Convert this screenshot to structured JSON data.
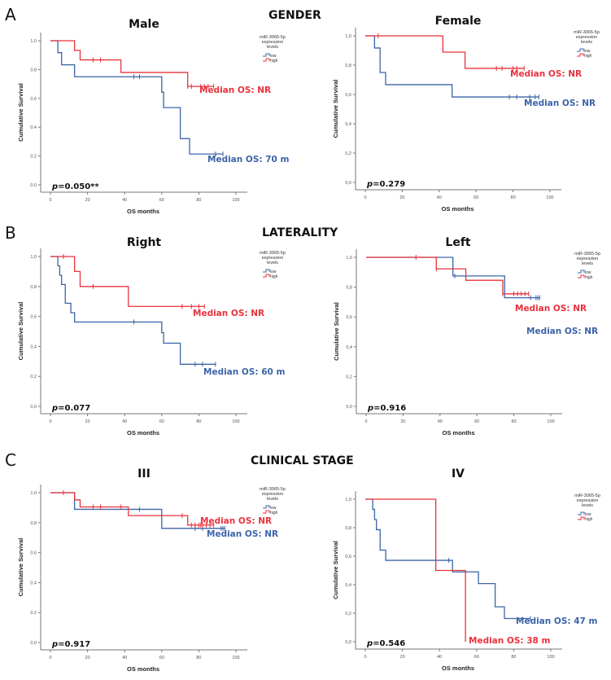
{
  "figure": {
    "sections": [
      {
        "letter": "A",
        "heading": "GENDER"
      },
      {
        "letter": "B",
        "heading": "LATERALITY"
      },
      {
        "letter": "C",
        "heading": "CLINICAL STAGE"
      }
    ]
  },
  "colors": {
    "low": "#3b64a8",
    "high": "#e8323c",
    "axis": "#777777"
  },
  "chart_data": [
    {
      "type": "line",
      "subtype": "kaplan-meier step",
      "title": "Male",
      "xlabel": "OS months",
      "ylabel": "Cumulative Survival",
      "xlim": [
        0,
        100
      ],
      "ylim": [
        0,
        1
      ],
      "xticks": [
        "0",
        "20",
        "40",
        "60",
        "80",
        "100"
      ],
      "yticks": [
        "0.0",
        "0.2",
        "0.4",
        "0.6",
        "0.8",
        "1.0"
      ],
      "legend": {
        "title": [
          "miR-3065-5p",
          "expression",
          "levels"
        ],
        "entries": [
          "low",
          "high"
        ],
        "position": "top-right"
      },
      "p_label": "p",
      "p_value": "=0.050**",
      "series": [
        {
          "name": "low",
          "steps": [
            [
              0,
              1
            ],
            [
              4,
              0.917
            ],
            [
              6,
              0.833
            ],
            [
              13,
              0.75
            ],
            [
              60,
              0.643
            ],
            [
              61,
              0.536
            ],
            [
              70,
              0.321
            ],
            [
              75,
              0.214
            ]
          ],
          "end": 93,
          "censored": [
            45,
            48,
            89,
            93
          ],
          "median_label": "Median OS: 70 m"
        },
        {
          "name": "high",
          "steps": [
            [
              0,
              1
            ],
            [
              13,
              0.933
            ],
            [
              16,
              0.867
            ],
            [
              38,
              0.78
            ],
            [
              74,
              0.683
            ]
          ],
          "end": 88,
          "censored": [
            23,
            27,
            74,
            76,
            81,
            83,
            85,
            88
          ],
          "median_label": "Median OS: NR"
        }
      ]
    },
    {
      "type": "line",
      "subtype": "kaplan-meier step",
      "title": "Female",
      "xlabel": "OS months",
      "ylabel": "Cumulative Survival",
      "xlim": [
        0,
        100
      ],
      "ylim": [
        0,
        1
      ],
      "xticks": [
        "0",
        "20",
        "40",
        "60",
        "80",
        "100"
      ],
      "yticks": [
        "0,0",
        "0,2",
        "0,4",
        "0,6",
        "0,8",
        "1,0"
      ],
      "legend": {
        "title": [
          "miR-3065-5p",
          "expression",
          "levels"
        ],
        "entries": [
          "low",
          "high"
        ],
        "position": "top-right"
      },
      "p_label": "p",
      "p_value": "=0.279",
      "series": [
        {
          "name": "low",
          "steps": [
            [
              0,
              1
            ],
            [
              5,
              0.917
            ],
            [
              8,
              0.75
            ],
            [
              11,
              0.667
            ],
            [
              47,
              0.583
            ]
          ],
          "end": 94,
          "censored": [
            78,
            82,
            89,
            92,
            94
          ],
          "median_label": "Median OS: NR"
        },
        {
          "name": "high",
          "steps": [
            [
              0,
              1
            ],
            [
              42,
              0.889
            ],
            [
              54,
              0.778
            ]
          ],
          "end": 86,
          "censored": [
            7,
            71,
            74,
            80,
            82,
            86
          ],
          "median_label": "Median OS: NR"
        }
      ]
    },
    {
      "type": "line",
      "subtype": "kaplan-meier step",
      "title": "Right",
      "xlabel": "OS months",
      "ylabel": "Cumulative Survival",
      "xlim": [
        0,
        100
      ],
      "ylim": [
        0,
        1
      ],
      "xticks": [
        "0",
        "20",
        "40",
        "60",
        "80",
        "100"
      ],
      "yticks": [
        "0,0",
        "0,2",
        "0,4",
        "0,6",
        "0,8",
        "1,0"
      ],
      "legend": {
        "title": [
          "miR-3065-5p",
          "expression",
          "levels"
        ],
        "entries": [
          "low",
          "high"
        ],
        "position": "top-right"
      },
      "p_label": "p",
      "p_value": "=0.077",
      "series": [
        {
          "name": "low",
          "steps": [
            [
              0,
              1
            ],
            [
              4,
              0.938
            ],
            [
              5,
              0.875
            ],
            [
              6,
              0.813
            ],
            [
              8,
              0.688
            ],
            [
              11,
              0.625
            ],
            [
              13,
              0.563
            ],
            [
              60,
              0.492
            ],
            [
              61,
              0.422
            ],
            [
              70,
              0.281
            ]
          ],
          "end": 89,
          "censored": [
            45,
            78,
            82,
            89
          ],
          "median_label": "Median OS: 60 m"
        },
        {
          "name": "high",
          "steps": [
            [
              0,
              1
            ],
            [
              13,
              0.9
            ],
            [
              16,
              0.8
            ],
            [
              42,
              0.667
            ]
          ],
          "end": 83,
          "censored": [
            7,
            23,
            71,
            76,
            80,
            83
          ],
          "median_label": "Median OS: NR"
        }
      ]
    },
    {
      "type": "line",
      "subtype": "kaplan-meier step",
      "title": "Left",
      "xlabel": "OS months",
      "ylabel": "Cumulative Survival",
      "xlim": [
        0,
        100
      ],
      "ylim": [
        0,
        1
      ],
      "xticks": [
        "0",
        "20",
        "40",
        "60",
        "80",
        "100"
      ],
      "yticks": [
        "0,0",
        "0,2",
        "0,4",
        "0,6",
        "0,8",
        "1,0"
      ],
      "legend": {
        "title": [
          "miR-3065-5p",
          "expression",
          "levels"
        ],
        "entries": [
          "low",
          "high"
        ],
        "position": "top-right"
      },
      "p_label": "p",
      "p_value": "=0.916",
      "series": [
        {
          "name": "low",
          "steps": [
            [
              0,
              1
            ],
            [
              47,
              0.875
            ],
            [
              75,
              0.729
            ]
          ],
          "end": 94,
          "censored": [
            48,
            89,
            92,
            93,
            94
          ],
          "median_label": "Median OS: NR"
        },
        {
          "name": "high",
          "steps": [
            [
              0,
              1
            ],
            [
              38,
              0.923
            ],
            [
              54,
              0.846
            ],
            [
              74,
              0.755
            ]
          ],
          "end": 88,
          "censored": [
            27,
            38,
            74,
            80,
            82,
            84,
            86,
            88
          ],
          "median_label": "Median OS: NR"
        }
      ]
    },
    {
      "type": "line",
      "subtype": "kaplan-meier step",
      "title": "III",
      "xlabel": "OS months",
      "ylabel": "Cumulative Survival",
      "xlim": [
        0,
        100
      ],
      "ylim": [
        0,
        1
      ],
      "xticks": [
        "0",
        "20",
        "40",
        "60",
        "80",
        "100"
      ],
      "yticks": [
        "0.0",
        "0.2",
        "0.4",
        "0.6",
        "0.8",
        "1.0"
      ],
      "legend": {
        "title": [
          "miR-3065-5p",
          "expression",
          "levels"
        ],
        "entries": [
          "low",
          "high"
        ],
        "position": "top-right"
      },
      "p_label": "p",
      "p_value": "=0.917",
      "series": [
        {
          "name": "low",
          "steps": [
            [
              0,
              1
            ],
            [
              13,
              0.889
            ],
            [
              60,
              0.762
            ]
          ],
          "end": 94,
          "censored": [
            48,
            78,
            82,
            92,
            93,
            94
          ],
          "median_label": "Median OS: NR"
        },
        {
          "name": "high",
          "steps": [
            [
              0,
              1
            ],
            [
              13,
              0.952
            ],
            [
              16,
              0.905
            ],
            [
              42,
              0.847
            ],
            [
              74,
              0.784
            ]
          ],
          "end": 88,
          "censored": [
            7,
            23,
            27,
            38,
            71,
            76,
            78,
            80,
            81,
            82,
            84,
            86,
            88
          ],
          "median_label": "Median OS: NR"
        }
      ]
    },
    {
      "type": "line",
      "subtype": "kaplan-meier step",
      "title": "IV",
      "xlabel": "OS months",
      "ylabel": "Cumulative Survival",
      "xlim": [
        0,
        100
      ],
      "ylim": [
        0,
        1
      ],
      "xticks": [
        "0",
        "20",
        "40",
        "60",
        "80",
        "100"
      ],
      "yticks": [
        "0,0",
        "0,2",
        "0,4",
        "0,6",
        "0,8",
        "1,0"
      ],
      "legend": {
        "title": [
          "miR-3065-5p",
          "expression",
          "levels"
        ],
        "entries": [
          "low",
          "high"
        ],
        "position": "top-right"
      },
      "p_label": "p",
      "p_value": "=0.546",
      "series": [
        {
          "name": "low",
          "steps": [
            [
              0,
              1
            ],
            [
              4,
              0.929
            ],
            [
              5,
              0.857
            ],
            [
              6,
              0.786
            ],
            [
              8,
              0.643
            ],
            [
              11,
              0.571
            ],
            [
              47,
              0.49
            ],
            [
              61,
              0.408
            ],
            [
              70,
              0.245
            ],
            [
              75,
              0.163
            ]
          ],
          "end": 89,
          "censored": [
            45,
            89
          ],
          "median_label": "Median OS: 47 m"
        },
        {
          "name": "high",
          "steps": [
            [
              0,
              1
            ],
            [
              38,
              0.5
            ],
            [
              54,
              0
            ]
          ],
          "end": 54,
          "censored": [],
          "median_label": "Median OS: 38 m"
        }
      ]
    }
  ]
}
